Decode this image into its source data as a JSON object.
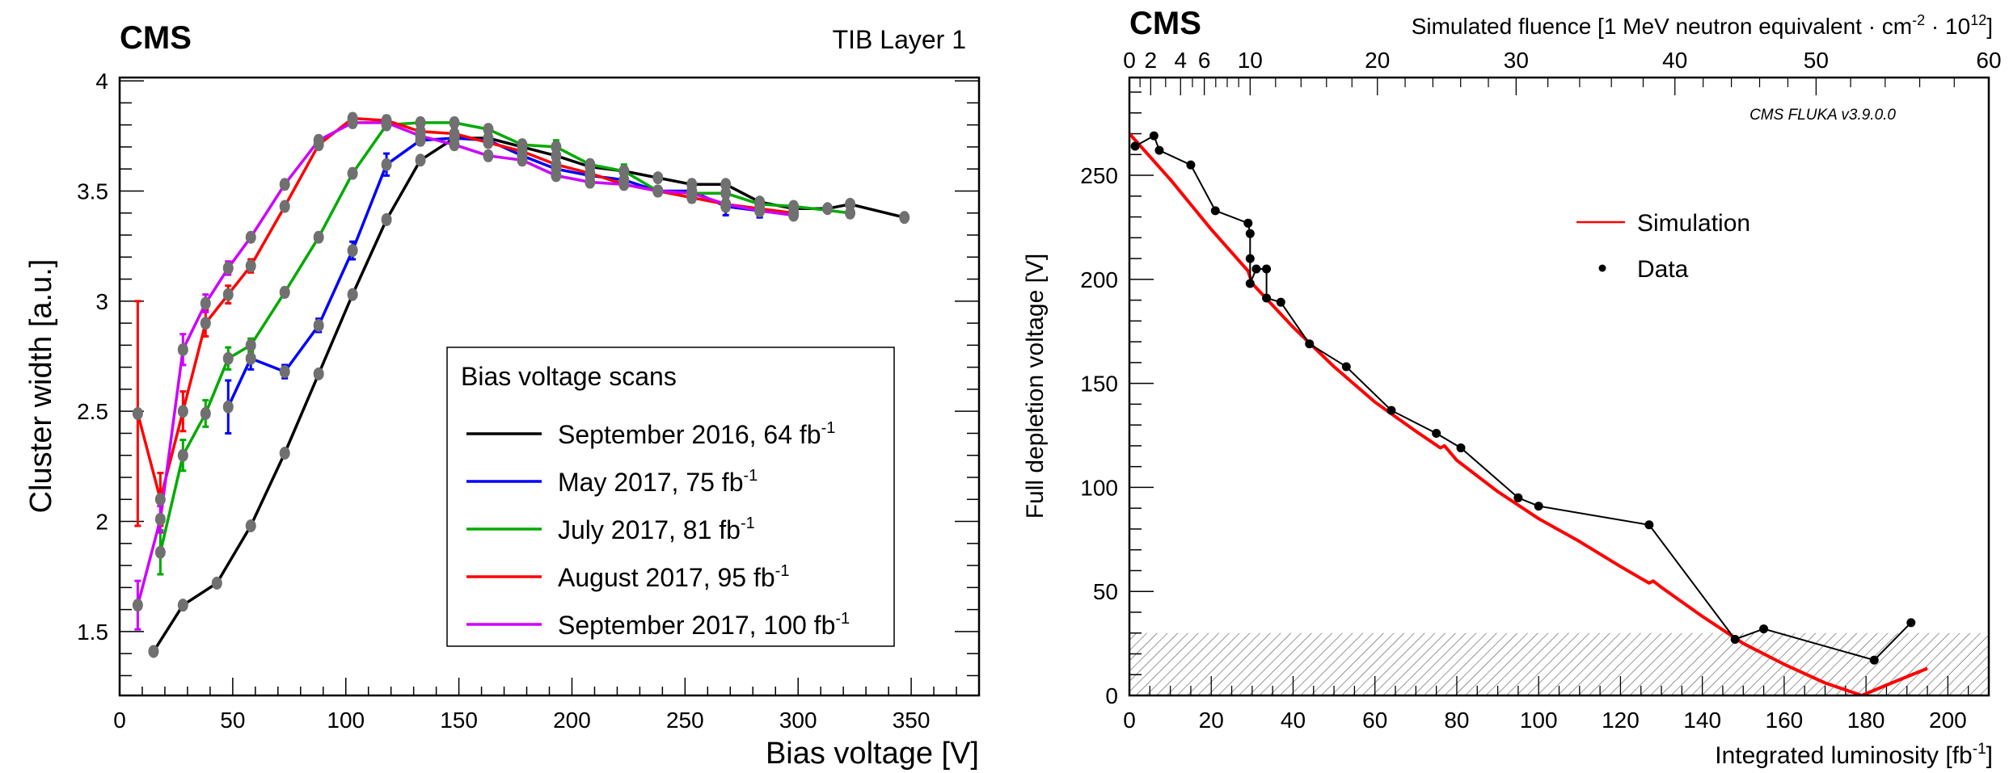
{
  "chart_data": [
    {
      "type": "line",
      "experiment_label": "CMS",
      "title": "TIB Layer 1",
      "xlabel": "Bias voltage [V]",
      "ylabel": "Cluster width [a.u.]",
      "xlim": [
        0,
        380
      ],
      "ylim": [
        1.21,
        4.015
      ],
      "x_ticks": [
        0,
        50,
        100,
        150,
        200,
        250,
        300,
        350
      ],
      "x_tick_labels": [
        "0",
        "50",
        "100",
        "150",
        "200",
        "250",
        "300",
        "350"
      ],
      "y_ticks": [
        1.5,
        2,
        2.5,
        3,
        3.5,
        4
      ],
      "y_tick_labels": [
        "1.5",
        "2",
        "2.5",
        "3",
        "3.5",
        "4"
      ],
      "grid": false,
      "marker_color": "#707070",
      "legend": {
        "title": "Bias voltage scans",
        "placement": "lower-right"
      },
      "series": [
        {
          "name": "September 2016, 64 fb",
          "name_sup": "-1",
          "color": "#000000",
          "x": [
            15,
            28,
            43,
            58,
            73,
            88,
            103,
            118,
            133,
            148,
            163,
            178,
            193,
            208,
            223,
            238,
            253,
            268,
            283,
            298,
            313,
            323,
            347
          ],
          "y": [
            1.41,
            1.62,
            1.72,
            1.98,
            2.31,
            2.67,
            3.03,
            3.37,
            3.64,
            3.74,
            3.74,
            3.7,
            3.66,
            3.61,
            3.59,
            3.56,
            3.53,
            3.53,
            3.45,
            3.42,
            3.42,
            3.44,
            3.38
          ]
        },
        {
          "name": "May 2017, 75 fb",
          "name_sup": "-1",
          "color": "#0000ff",
          "x": [
            48,
            58,
            73,
            88,
            103,
            118,
            133,
            148,
            163,
            178,
            193,
            208,
            223,
            238,
            253,
            268,
            283,
            298
          ],
          "y": [
            2.52,
            2.74,
            2.68,
            2.89,
            3.23,
            3.62,
            3.73,
            3.74,
            3.73,
            3.66,
            3.6,
            3.57,
            3.55,
            3.5,
            3.5,
            3.43,
            3.41,
            3.4
          ],
          "yerr": [
            0.12,
            0.05,
            0.03,
            0.03,
            0.04,
            0.05,
            0.02,
            0.02,
            0.02,
            0.02,
            0.02,
            0.02,
            0.02,
            0.02,
            0.05,
            0.04,
            0.03,
            0.02
          ]
        },
        {
          "name": "July 2017, 81 fb",
          "name_sup": "-1",
          "color": "#00aa00",
          "x": [
            18,
            28,
            38,
            48,
            58,
            73,
            88,
            103,
            118,
            133,
            148,
            163,
            178,
            193,
            208,
            223,
            238,
            253,
            268,
            283,
            298,
            323
          ],
          "y": [
            1.86,
            2.3,
            2.49,
            2.74,
            2.8,
            3.04,
            3.29,
            3.58,
            3.8,
            3.81,
            3.81,
            3.78,
            3.71,
            3.7,
            3.62,
            3.59,
            3.5,
            3.49,
            3.49,
            3.44,
            3.43,
            3.4
          ],
          "yerr": [
            0.1,
            0.07,
            0.06,
            0.05,
            0.03,
            0.02,
            0.02,
            0.02,
            0.02,
            0.02,
            0.02,
            0.02,
            0.02,
            0.03,
            0.02,
            0.03,
            0.02,
            0.04,
            0.02,
            0.02,
            0.02,
            0.02
          ]
        },
        {
          "name": "August 2017, 95 fb",
          "name_sup": "-1",
          "color": "#ff0000",
          "x": [
            8,
            18,
            28,
            38,
            48,
            58,
            73,
            88,
            103,
            118,
            133,
            148,
            163,
            178,
            193,
            208,
            223,
            238,
            253,
            268,
            283,
            298
          ],
          "y": [
            2.49,
            2.1,
            2.5,
            2.9,
            3.03,
            3.16,
            3.43,
            3.71,
            3.83,
            3.82,
            3.77,
            3.76,
            3.72,
            3.68,
            3.62,
            3.58,
            3.53,
            3.5,
            3.47,
            3.44,
            3.42,
            3.4
          ],
          "yerr": [
            0.51,
            0.12,
            0.09,
            0.06,
            0.04,
            0.03,
            0.02,
            0.02,
            0.02,
            0.02,
            0.02,
            0.02,
            0.02,
            0.02,
            0.02,
            0.02,
            0.02,
            0.02,
            0.02,
            0.02,
            0.02,
            0.02
          ]
        },
        {
          "name": "September 2017, 100 fb",
          "name_sup": "-1",
          "color": "#cc00ff",
          "x": [
            8,
            18,
            28,
            38,
            48,
            58,
            73,
            88,
            103,
            118,
            133,
            148,
            163,
            178,
            193,
            208,
            223,
            238,
            253,
            268,
            283,
            298
          ],
          "y": [
            1.62,
            2.01,
            2.78,
            2.99,
            3.15,
            3.29,
            3.53,
            3.73,
            3.81,
            3.81,
            3.75,
            3.71,
            3.66,
            3.64,
            3.57,
            3.54,
            3.53,
            3.5,
            3.49,
            3.44,
            3.41,
            3.39
          ],
          "yerr": [
            0.11,
            0.06,
            0.07,
            0.04,
            0.03,
            0.02,
            0.02,
            0.02,
            0.02,
            0.02,
            0.02,
            0.02,
            0.02,
            0.02,
            0.02,
            0.02,
            0.02,
            0.02,
            0.02,
            0.02,
            0.02,
            0.02
          ]
        }
      ]
    },
    {
      "type": "line",
      "experiment_label": "CMS",
      "xlabel": "Integrated luminosity [fb",
      "xlabel_sup": "-1",
      "xlabel_end": "]",
      "ylabel": "Full depletion voltage [V]",
      "xlim": [
        0,
        210
      ],
      "ylim": [
        0,
        297
      ],
      "x_ticks": [
        0,
        20,
        40,
        60,
        80,
        100,
        120,
        140,
        160,
        180,
        200
      ],
      "x_tick_labels": [
        "0",
        "20",
        "40",
        "60",
        "80",
        "100",
        "120",
        "140",
        "160",
        "180",
        "200"
      ],
      "y_ticks": [
        0,
        50,
        100,
        150,
        200,
        250
      ],
      "y_tick_labels": [
        "0",
        "50",
        "100",
        "150",
        "200",
        "250"
      ],
      "top_axis": {
        "label": "Simulated fluence [1 MeV neutron equivalent · cm",
        "label_sup1": "-2",
        "label_mid": " · 10",
        "label_sup2": "12",
        "label_end": "]",
        "ticks_fluence": [
          0,
          2,
          4,
          6,
          10,
          20,
          30,
          40,
          50,
          60
        ],
        "tick_labels": [
          "0",
          "2",
          "4",
          "6",
          "10",
          "20",
          "30",
          "40",
          "50",
          "60"
        ],
        "tick_lumi_positions": [
          0,
          5.2,
          12.5,
          18.3,
          29.5,
          60.6,
          94.5,
          133.3,
          167.8,
          210
        ]
      },
      "annotation": "CMS FLUKA v3.9.0.0",
      "grid": false,
      "hatched_band": {
        "y_from": 0,
        "y_to": 30,
        "color": "#555555"
      },
      "legend": {
        "placement": "center-right"
      },
      "series": [
        {
          "name": "Simulation",
          "style": "line",
          "color": "#ff0000",
          "x": [
            0,
            10,
            20,
            29,
            30,
            40,
            50,
            60,
            70,
            76,
            77,
            80,
            90,
            100,
            110,
            120,
            127,
            128,
            130,
            140,
            150,
            160,
            170,
            179,
            185,
            195
          ],
          "y": [
            270,
            248,
            224,
            204,
            198,
            177,
            158,
            141,
            127,
            119,
            120,
            113,
            98,
            85,
            74,
            62,
            54,
            55,
            52,
            38,
            25,
            15,
            6,
            0,
            5,
            13
          ]
        },
        {
          "name": "Data",
          "style": "markers+line",
          "color": "#000000",
          "x": [
            1.4,
            6,
            7.3,
            15,
            21,
            29,
            29.5,
            29.5,
            29.5,
            31,
            33.5,
            33.5,
            37,
            44,
            53,
            64,
            75,
            81,
            95,
            100,
            127,
            148,
            155,
            182,
            191
          ],
          "y": [
            264,
            269,
            262,
            255,
            233,
            227,
            222,
            210,
            198,
            205,
            205,
            191,
            189,
            169,
            158,
            137,
            126,
            119,
            95,
            91,
            82,
            27,
            32,
            17,
            35
          ]
        }
      ]
    }
  ]
}
